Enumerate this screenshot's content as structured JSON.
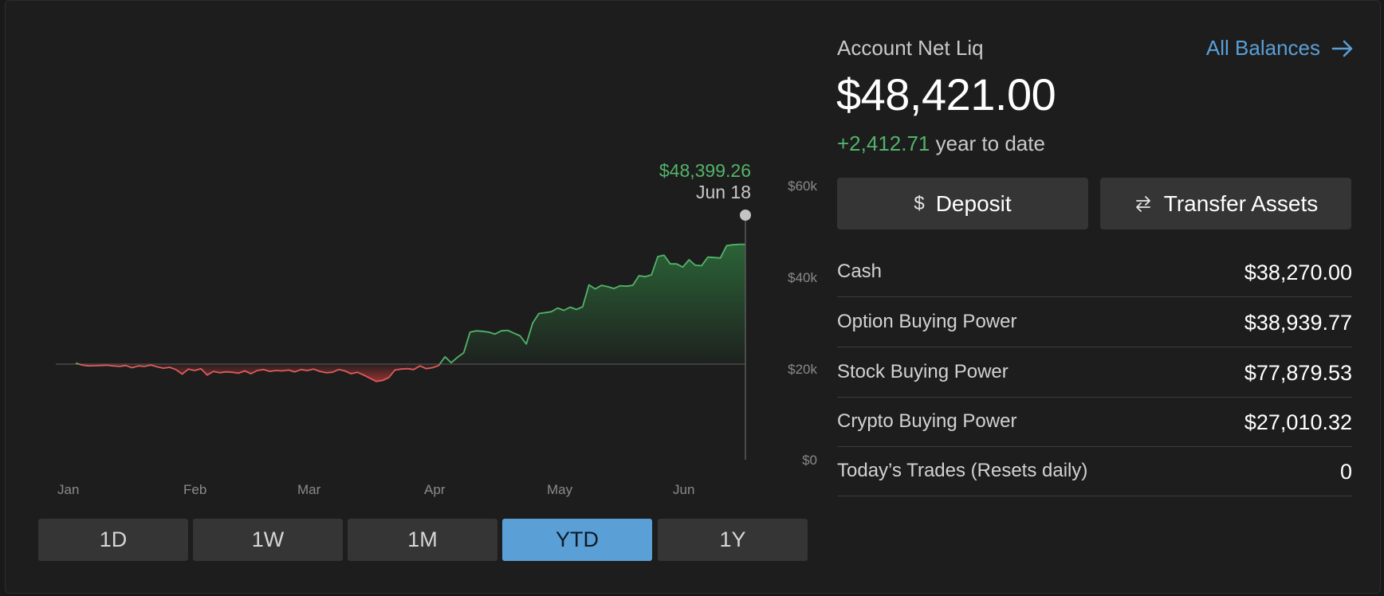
{
  "chart_data": {
    "type": "area",
    "x_labels": [
      "Jan",
      "Feb",
      "Mar",
      "Apr",
      "May",
      "Jun"
    ],
    "y_ticks": [
      "$60k",
      "$40k",
      "$20k",
      "$0"
    ],
    "ylim": [
      0,
      60000
    ],
    "baseline": 21000,
    "tooltip": {
      "value": "$48,399.26",
      "date": "Jun 18"
    },
    "series": [
      {
        "values": [
          21200,
          20800,
          20600,
          20650,
          20700,
          20750,
          20600,
          20500,
          20700,
          20200,
          20600,
          20500,
          20800,
          20400,
          20100,
          20300,
          19800,
          18800,
          19900,
          19600,
          20000,
          18600,
          19400,
          19100,
          19300,
          19200,
          19000,
          19500,
          18900,
          19600,
          19800,
          19400,
          19600,
          19500,
          19700,
          19300,
          19800,
          19600,
          19900,
          19400,
          19100,
          19200,
          19800,
          19500,
          18900,
          19200,
          18600,
          17900,
          17200,
          17400,
          18000,
          19700,
          19900,
          20000,
          19800,
          20600,
          20000,
          20200,
          20700,
          22600,
          21300,
          22500,
          23500,
          28000,
          28300,
          28200,
          28000,
          27600,
          28300,
          28400,
          27800,
          27200,
          25400,
          30000,
          32100,
          32300,
          32500,
          33300,
          32800,
          33500,
          33000,
          33600,
          38400,
          37500,
          38300,
          38000,
          37600,
          38200,
          38100,
          38300,
          40400,
          40200,
          40600,
          44600,
          44900,
          43000,
          43000,
          42300,
          43900,
          42700,
          42600,
          44500,
          44400,
          44300,
          47000,
          47200,
          47300,
          47300
        ]
      }
    ]
  },
  "ranges": [
    "1D",
    "1W",
    "1M",
    "YTD",
    "1Y"
  ],
  "active_range": "YTD",
  "account": {
    "title": "Account Net Liq",
    "all_balances": "All Balances",
    "net_liq": "$48,421.00",
    "ytd_change": "+2,412.71",
    "ytd_suffix": "year to date"
  },
  "actions": {
    "deposit": "Deposit",
    "transfer": "Transfer Assets"
  },
  "balances": [
    {
      "label": "Cash",
      "value": "$38,270.00"
    },
    {
      "label": "Option Buying Power",
      "value": "$38,939.77"
    },
    {
      "label": "Stock Buying Power",
      "value": "$77,879.53"
    },
    {
      "label": "Crypto Buying Power",
      "value": "$27,010.32"
    },
    {
      "label": "Today’s Trades (Resets daily)",
      "value": "0"
    }
  ],
  "colors": {
    "positive": "#53b36a",
    "negative": "#e05a5a",
    "accent": "#5a9fd6",
    "button_bg": "#353535"
  }
}
